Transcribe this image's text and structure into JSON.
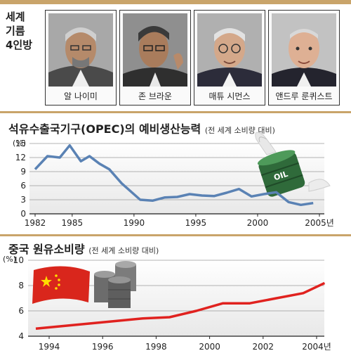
{
  "header": {
    "title_lines": [
      "세계",
      "기름",
      "4인방"
    ]
  },
  "portraits": [
    {
      "name": "알 나이미"
    },
    {
      "name": "존 브라운"
    },
    {
      "name": "매튜 시먼스"
    },
    {
      "name": "앤드루 룬퀴스트"
    }
  ],
  "colors": {
    "accent_rule": "#c9a46a",
    "opec_line": "#5a82b4",
    "china_line": "#e0221f",
    "plot_bg_bottom": "#e8e8e8"
  },
  "chart_data": [
    {
      "type": "line",
      "title": "석유수출국기구(OPEC)의 예비생산능력",
      "subtitle": "(전 세계 소비량 대비)",
      "ylabel": "(%)",
      "x": [
        1982,
        1983,
        1984,
        1984.8,
        1985.7,
        1986.4,
        1987.2,
        1988,
        1989,
        1990.5,
        1991.5,
        1992.5,
        1993.5,
        1994.5,
        1995.5,
        1996.5,
        1997.5,
        1998.5,
        1999.5,
        2000.5,
        2001.5,
        2002.5,
        2003.5,
        2004.5
      ],
      "values": [
        9.5,
        12.3,
        12,
        14.6,
        11.2,
        12.3,
        10.7,
        9.5,
        6.5,
        3,
        2.8,
        3.5,
        3.6,
        4.2,
        3.9,
        3.8,
        4.5,
        5.3,
        3.7,
        4.2,
        4.6,
        2.5,
        1.9,
        2.3
      ],
      "ylim": [
        0,
        15
      ],
      "yticks": [
        "0",
        "3",
        "6",
        "9",
        "12",
        "15"
      ],
      "xtick_labels": [
        "1982",
        "1985",
        "1990",
        "1995",
        "2000",
        "2005년"
      ],
      "icon": "flying-oil-barrel-icon"
    },
    {
      "type": "line",
      "title": "중국 원유소비량",
      "subtitle": "(전 세계 소비량 대비)",
      "ylabel": "(%)",
      "x": [
        1993.5,
        1994.5,
        1995.5,
        1996.5,
        1997.5,
        1998.5,
        1999.5,
        2000.5,
        2001.5,
        2002.5,
        2003.5,
        2004.3
      ],
      "values": [
        4.6,
        4.8,
        5.0,
        5.2,
        5.4,
        5.5,
        6.0,
        6.6,
        6.6,
        7.0,
        7.4,
        8.2
      ],
      "ylim": [
        4,
        10
      ],
      "yticks": [
        "4",
        "6",
        "8",
        "10"
      ],
      "xtick_labels": [
        "1994",
        "1996",
        "1998",
        "2000",
        "2002",
        "2004년"
      ],
      "icon": "china-flag-oil-barrels-icon"
    }
  ]
}
